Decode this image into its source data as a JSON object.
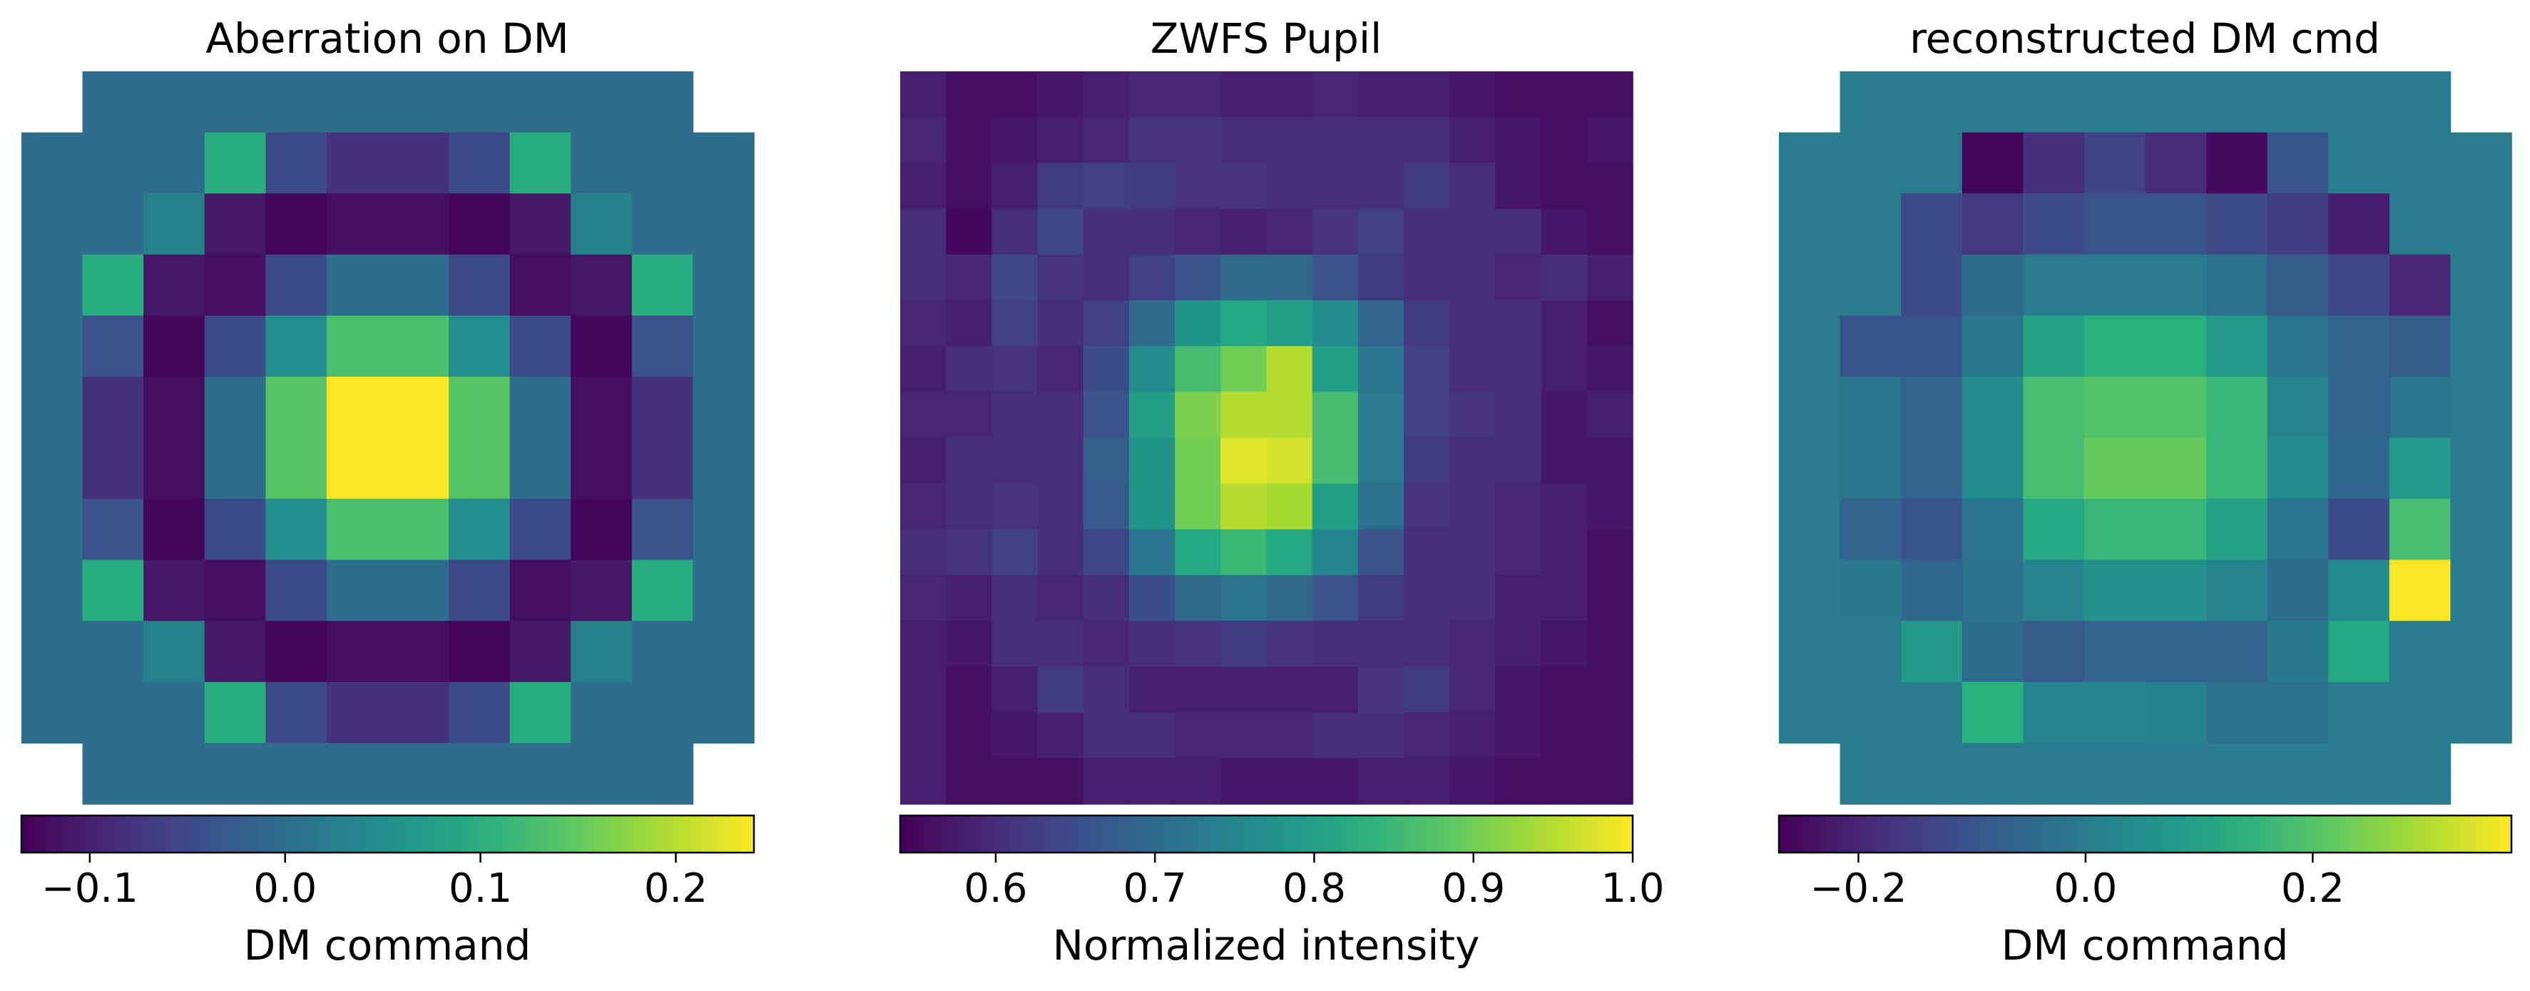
{
  "chart_data": [
    {
      "type": "heatmap",
      "title": "Aberration on DM",
      "colorbar_label": "DM command",
      "colormap": "viridis",
      "clim": [
        -0.135,
        0.24
      ],
      "colorbar_ticks": [
        -0.1,
        0.0,
        0.1,
        0.2
      ],
      "colorbar_tick_labels": [
        "−0.1",
        "0.0",
        "0.1",
        "0.2"
      ],
      "grid_rows": 12,
      "grid_cols": 12,
      "masked_corners": "top-left, top-right, bottom-left, bottom-right (12x12 DM with 4 corner actuators removed)",
      "values": [
        [
          null,
          0,
          0,
          0,
          0,
          0,
          0,
          0,
          0,
          0,
          0,
          null
        ],
        [
          0,
          0,
          0,
          0.1,
          -0.05,
          -0.08,
          -0.08,
          -0.05,
          0.1,
          0,
          0,
          0
        ],
        [
          0,
          0,
          0.03,
          -0.11,
          -0.13,
          -0.12,
          -0.12,
          -0.13,
          -0.11,
          0.03,
          0,
          0
        ],
        [
          0,
          0.1,
          -0.11,
          -0.12,
          -0.05,
          0,
          0,
          -0.05,
          -0.12,
          -0.11,
          0.1,
          0
        ],
        [
          0,
          -0.04,
          -0.13,
          -0.05,
          0.05,
          0.13,
          0.13,
          0.05,
          -0.05,
          -0.13,
          -0.04,
          0
        ],
        [
          0,
          -0.08,
          -0.12,
          0,
          0.14,
          0.24,
          0.24,
          0.14,
          0,
          -0.12,
          -0.08,
          0
        ],
        [
          0,
          -0.08,
          -0.12,
          0,
          0.14,
          0.24,
          0.24,
          0.14,
          0,
          -0.12,
          -0.08,
          0
        ],
        [
          0,
          -0.04,
          -0.13,
          -0.05,
          0.05,
          0.13,
          0.13,
          0.05,
          -0.05,
          -0.13,
          -0.04,
          0
        ],
        [
          0,
          0.1,
          -0.11,
          -0.12,
          -0.05,
          0,
          0,
          -0.05,
          -0.12,
          -0.11,
          0.1,
          0
        ],
        [
          0,
          0,
          0.03,
          -0.11,
          -0.13,
          -0.12,
          -0.12,
          -0.13,
          -0.11,
          0.03,
          0,
          0
        ],
        [
          0,
          0,
          0,
          0.1,
          -0.05,
          -0.08,
          -0.08,
          -0.05,
          0.1,
          0,
          0,
          0
        ],
        [
          null,
          0,
          0,
          0,
          0,
          0,
          0,
          0,
          0,
          0,
          0,
          null
        ]
      ]
    },
    {
      "type": "heatmap",
      "title": "ZWFS Pupil",
      "colorbar_label": "Normalized intensity",
      "colormap": "viridis",
      "clim": [
        0.54,
        1.0
      ],
      "colorbar_ticks": [
        0.6,
        0.7,
        0.8,
        0.9,
        1.0
      ],
      "colorbar_tick_labels": [
        "0.6",
        "0.7",
        "0.8",
        "0.9",
        "1.0"
      ],
      "grid_rows": 16,
      "grid_cols": 16,
      "values": [
        [
          0.58,
          0.56,
          0.56,
          0.57,
          0.58,
          0.59,
          0.59,
          0.58,
          0.58,
          0.59,
          0.58,
          0.58,
          0.57,
          0.56,
          0.56,
          0.56
        ],
        [
          0.59,
          0.56,
          0.57,
          0.58,
          0.59,
          0.61,
          0.61,
          0.6,
          0.6,
          0.6,
          0.6,
          0.6,
          0.58,
          0.57,
          0.56,
          0.57
        ],
        [
          0.58,
          0.56,
          0.58,
          0.62,
          0.63,
          0.62,
          0.61,
          0.61,
          0.6,
          0.6,
          0.6,
          0.62,
          0.6,
          0.57,
          0.56,
          0.56
        ],
        [
          0.6,
          0.55,
          0.6,
          0.64,
          0.6,
          0.6,
          0.59,
          0.58,
          0.59,
          0.61,
          0.63,
          0.6,
          0.6,
          0.6,
          0.57,
          0.56
        ],
        [
          0.6,
          0.59,
          0.64,
          0.61,
          0.6,
          0.63,
          0.66,
          0.7,
          0.7,
          0.66,
          0.62,
          0.6,
          0.6,
          0.59,
          0.6,
          0.58
        ],
        [
          0.59,
          0.58,
          0.63,
          0.6,
          0.63,
          0.7,
          0.78,
          0.82,
          0.8,
          0.76,
          0.69,
          0.62,
          0.6,
          0.6,
          0.58,
          0.56
        ],
        [
          0.58,
          0.6,
          0.61,
          0.59,
          0.65,
          0.76,
          0.86,
          0.9,
          0.95,
          0.8,
          0.72,
          0.63,
          0.6,
          0.6,
          0.58,
          0.57
        ],
        [
          0.59,
          0.59,
          0.6,
          0.6,
          0.66,
          0.8,
          0.91,
          0.95,
          0.95,
          0.86,
          0.73,
          0.63,
          0.61,
          0.6,
          0.57,
          0.58
        ],
        [
          0.58,
          0.6,
          0.6,
          0.6,
          0.68,
          0.78,
          0.9,
          0.98,
          0.97,
          0.86,
          0.73,
          0.62,
          0.6,
          0.6,
          0.57,
          0.57
        ],
        [
          0.59,
          0.6,
          0.61,
          0.6,
          0.67,
          0.78,
          0.9,
          0.95,
          0.94,
          0.8,
          0.71,
          0.61,
          0.6,
          0.59,
          0.58,
          0.57
        ],
        [
          0.6,
          0.61,
          0.63,
          0.6,
          0.64,
          0.72,
          0.82,
          0.85,
          0.82,
          0.75,
          0.66,
          0.6,
          0.6,
          0.59,
          0.58,
          0.56
        ],
        [
          0.59,
          0.58,
          0.6,
          0.59,
          0.6,
          0.65,
          0.7,
          0.72,
          0.7,
          0.66,
          0.62,
          0.6,
          0.6,
          0.58,
          0.58,
          0.56
        ],
        [
          0.58,
          0.57,
          0.6,
          0.6,
          0.59,
          0.6,
          0.61,
          0.62,
          0.61,
          0.6,
          0.6,
          0.6,
          0.59,
          0.58,
          0.57,
          0.56
        ],
        [
          0.58,
          0.56,
          0.58,
          0.62,
          0.6,
          0.58,
          0.58,
          0.58,
          0.58,
          0.58,
          0.61,
          0.62,
          0.59,
          0.57,
          0.56,
          0.56
        ],
        [
          0.58,
          0.56,
          0.57,
          0.58,
          0.6,
          0.6,
          0.59,
          0.59,
          0.59,
          0.6,
          0.6,
          0.59,
          0.58,
          0.57,
          0.56,
          0.56
        ],
        [
          0.58,
          0.56,
          0.56,
          0.56,
          0.58,
          0.58,
          0.58,
          0.57,
          0.57,
          0.57,
          0.58,
          0.58,
          0.57,
          0.56,
          0.56,
          0.56
        ]
      ]
    },
    {
      "type": "heatmap",
      "title": "reconstructed DM cmd",
      "colorbar_label": "DM command",
      "colormap": "viridis",
      "clim": [
        -0.27,
        0.375
      ],
      "colorbar_ticks": [
        -0.2,
        0.0,
        0.2
      ],
      "colorbar_tick_labels": [
        "−0.2",
        "0.0",
        "0.2"
      ],
      "grid_rows": 12,
      "grid_cols": 12,
      "masked_corners": "top-left, top-right, bottom-left, bottom-right",
      "values": [
        [
          null,
          0.0,
          0.0,
          0.0,
          0.0,
          0.0,
          0.0,
          0.0,
          0.0,
          0.0,
          0.0,
          null
        ],
        [
          0.0,
          0.0,
          0.0,
          -0.26,
          -0.18,
          -0.14,
          -0.19,
          -0.25,
          -0.1,
          0.0,
          0.0,
          0.0
        ],
        [
          0.0,
          0.0,
          -0.12,
          -0.16,
          -0.12,
          -0.1,
          -0.1,
          -0.12,
          -0.15,
          -0.22,
          0.0,
          0.0
        ],
        [
          0.0,
          0.0,
          -0.12,
          -0.04,
          0.0,
          0.0,
          0.0,
          -0.03,
          -0.08,
          -0.13,
          -0.2,
          0.0
        ],
        [
          0.0,
          -0.1,
          -0.1,
          -0.01,
          0.1,
          0.14,
          0.14,
          0.08,
          -0.02,
          -0.06,
          -0.08,
          0.0
        ],
        [
          0.0,
          -0.02,
          -0.06,
          0.04,
          0.18,
          0.2,
          0.2,
          0.16,
          0.02,
          -0.06,
          -0.02,
          0.0
        ],
        [
          0.0,
          -0.02,
          -0.06,
          0.04,
          0.18,
          0.22,
          0.22,
          0.16,
          0.04,
          -0.05,
          0.08,
          0.0
        ],
        [
          0.0,
          -0.06,
          -0.1,
          -0.02,
          0.12,
          0.16,
          0.16,
          0.1,
          -0.02,
          -0.12,
          0.18,
          0.0
        ],
        [
          0.0,
          -0.01,
          -0.05,
          -0.03,
          0.02,
          0.06,
          0.06,
          0.02,
          -0.04,
          0.04,
          0.375,
          0.0
        ],
        [
          0.0,
          0.0,
          0.08,
          -0.04,
          -0.08,
          -0.06,
          -0.06,
          -0.06,
          -0.01,
          0.12,
          0.0,
          0.0
        ],
        [
          0.0,
          0.0,
          0.0,
          0.14,
          0.02,
          0.02,
          0.01,
          -0.03,
          -0.03,
          0.0,
          0.0,
          0.0
        ],
        [
          null,
          0.0,
          0.0,
          0.0,
          0.0,
          0.0,
          0.0,
          0.0,
          0.0,
          0.0,
          0.0,
          null
        ]
      ]
    }
  ]
}
